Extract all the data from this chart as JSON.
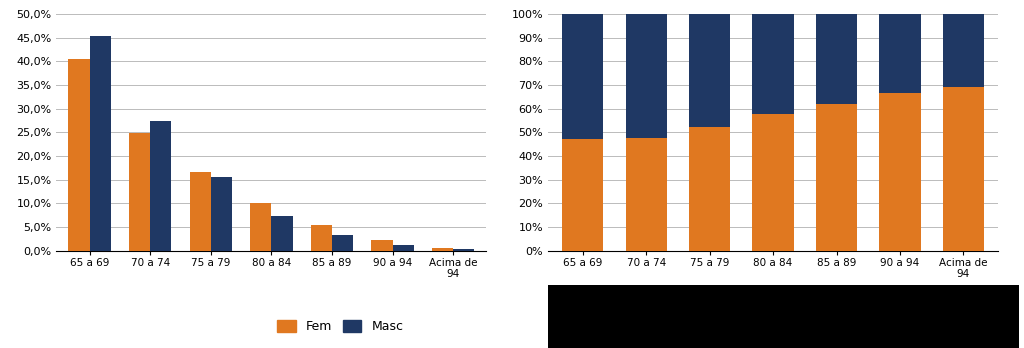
{
  "categories": [
    "65 a 69",
    "70 a 74",
    "75 a 79",
    "80 a 84",
    "85 a 89",
    "90 a 94",
    "Acima de\n94"
  ],
  "fem_abs": [
    40.5,
    24.8,
    16.7,
    10.0,
    5.3,
    2.2,
    0.5
  ],
  "masc_abs": [
    45.3,
    27.3,
    15.6,
    7.3,
    3.3,
    1.1,
    0.3
  ],
  "fem_pct": [
    47.2,
    47.6,
    52.2,
    57.8,
    62.0,
    66.5,
    69.0
  ],
  "masc_pct": [
    52.8,
    52.4,
    47.8,
    42.2,
    38.0,
    33.5,
    31.0
  ],
  "color_fem": "#E07820",
  "color_masc": "#1F3864",
  "legend_labels": [
    "Fem",
    "Masc"
  ],
  "bg_color": "#FFFFFF",
  "grid_color": "#BBBBBB",
  "yticks_left": [
    0.0,
    5.0,
    10.0,
    15.0,
    20.0,
    25.0,
    30.0,
    35.0,
    40.0,
    45.0,
    50.0
  ],
  "yticks_right": [
    0,
    10,
    20,
    30,
    40,
    50,
    60,
    70,
    80,
    90,
    100
  ],
  "black_bar_color": "#000000"
}
